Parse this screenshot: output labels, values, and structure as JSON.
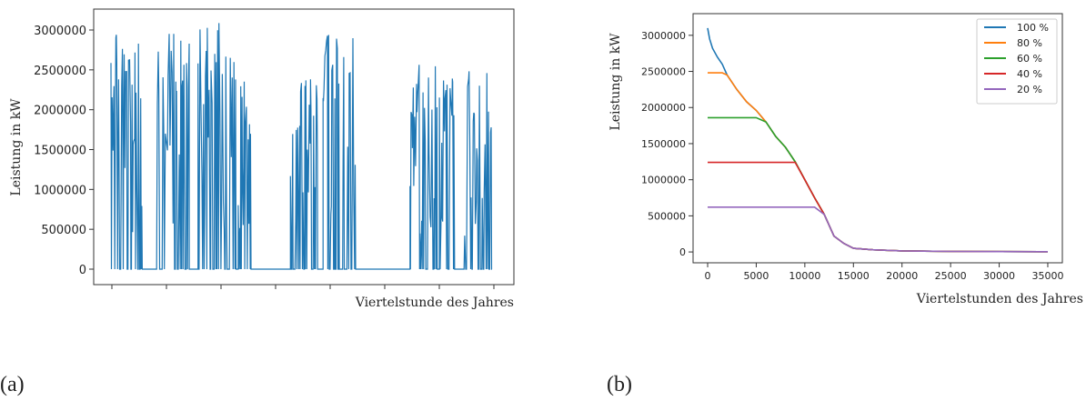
{
  "panel_labels": {
    "a": "(a)",
    "b": "(b)"
  },
  "chart_data": [
    {
      "type": "line",
      "xlabel": "Viertelstunde des Jahres",
      "ylabel": "Leistung in kW",
      "ylim": [
        0,
        3250000
      ],
      "yticks": [
        0,
        500000,
        1000000,
        1500000,
        2000000,
        2500000,
        3000000
      ],
      "ytick_labels": [
        "0",
        "500000",
        "1000000",
        "1500000",
        "2000000",
        "2500000",
        "3000000"
      ],
      "x_tick_labels_shown": false,
      "xlim": [
        0,
        35040
      ],
      "series": [
        {
          "color": "#1f77b4",
          "blocks": [
            [
              0,
              3000,
              2980000
            ],
            [
              4200,
              7200,
              2960000
            ],
            [
              8000,
              11500,
              3100000
            ],
            [
              11700,
              13000,
              2500000
            ],
            [
              16500,
              19000,
              2400000
            ],
            [
              19500,
              21000,
              2980000
            ],
            [
              21300,
              22500,
              2980000
            ],
            [
              27500,
              30000,
              2620000
            ],
            [
              30200,
              31800,
              2400000
            ],
            [
              32400,
              35000,
              2500000
            ]
          ]
        }
      ]
    },
    {
      "type": "line",
      "xlabel": "Viertelstunden des Jahres",
      "ylabel": "Leistung in kW",
      "xlim": [
        -1500,
        36500
      ],
      "ylim": [
        -150000,
        3300000
      ],
      "xticks": [
        0,
        5000,
        10000,
        15000,
        20000,
        25000,
        30000,
        35000
      ],
      "xtick_labels": [
        "0",
        "5000",
        "10000",
        "15000",
        "20000",
        "25000",
        "30000",
        "35000"
      ],
      "yticks": [
        0,
        500000,
        1000000,
        1500000,
        2000000,
        2500000,
        3000000
      ],
      "ytick_labels": [
        "0",
        "500000",
        "1000000",
        "1500000",
        "2000000",
        "2500000",
        "3000000"
      ],
      "legend_position": "top-right",
      "duration_curve": {
        "x": [
          0,
          200,
          500,
          1000,
          1500,
          2000,
          3000,
          4000,
          5000,
          6000,
          7000,
          8000,
          9000,
          10000,
          11000,
          12000,
          13000,
          14000,
          15000,
          17000,
          20000,
          25000,
          30000,
          35000
        ],
        "y": [
          3100000,
          2950000,
          2820000,
          2700000,
          2600000,
          2450000,
          2250000,
          2080000,
          1960000,
          1800000,
          1600000,
          1450000,
          1250000,
          1000000,
          750000,
          520000,
          220000,
          120000,
          50000,
          30000,
          15000,
          8000,
          5000,
          3000
        ]
      },
      "series": [
        {
          "name": "100 %",
          "color": "#1f77b4",
          "cap": 3100000
        },
        {
          "name": "80 %",
          "color": "#ff7f0e",
          "cap": 2480000
        },
        {
          "name": "60 %",
          "color": "#2ca02c",
          "cap": 1860000
        },
        {
          "name": "40 %",
          "color": "#d62728",
          "cap": 1240000
        },
        {
          "name": "20 %",
          "color": "#9467bd",
          "cap": 620000
        }
      ]
    }
  ]
}
